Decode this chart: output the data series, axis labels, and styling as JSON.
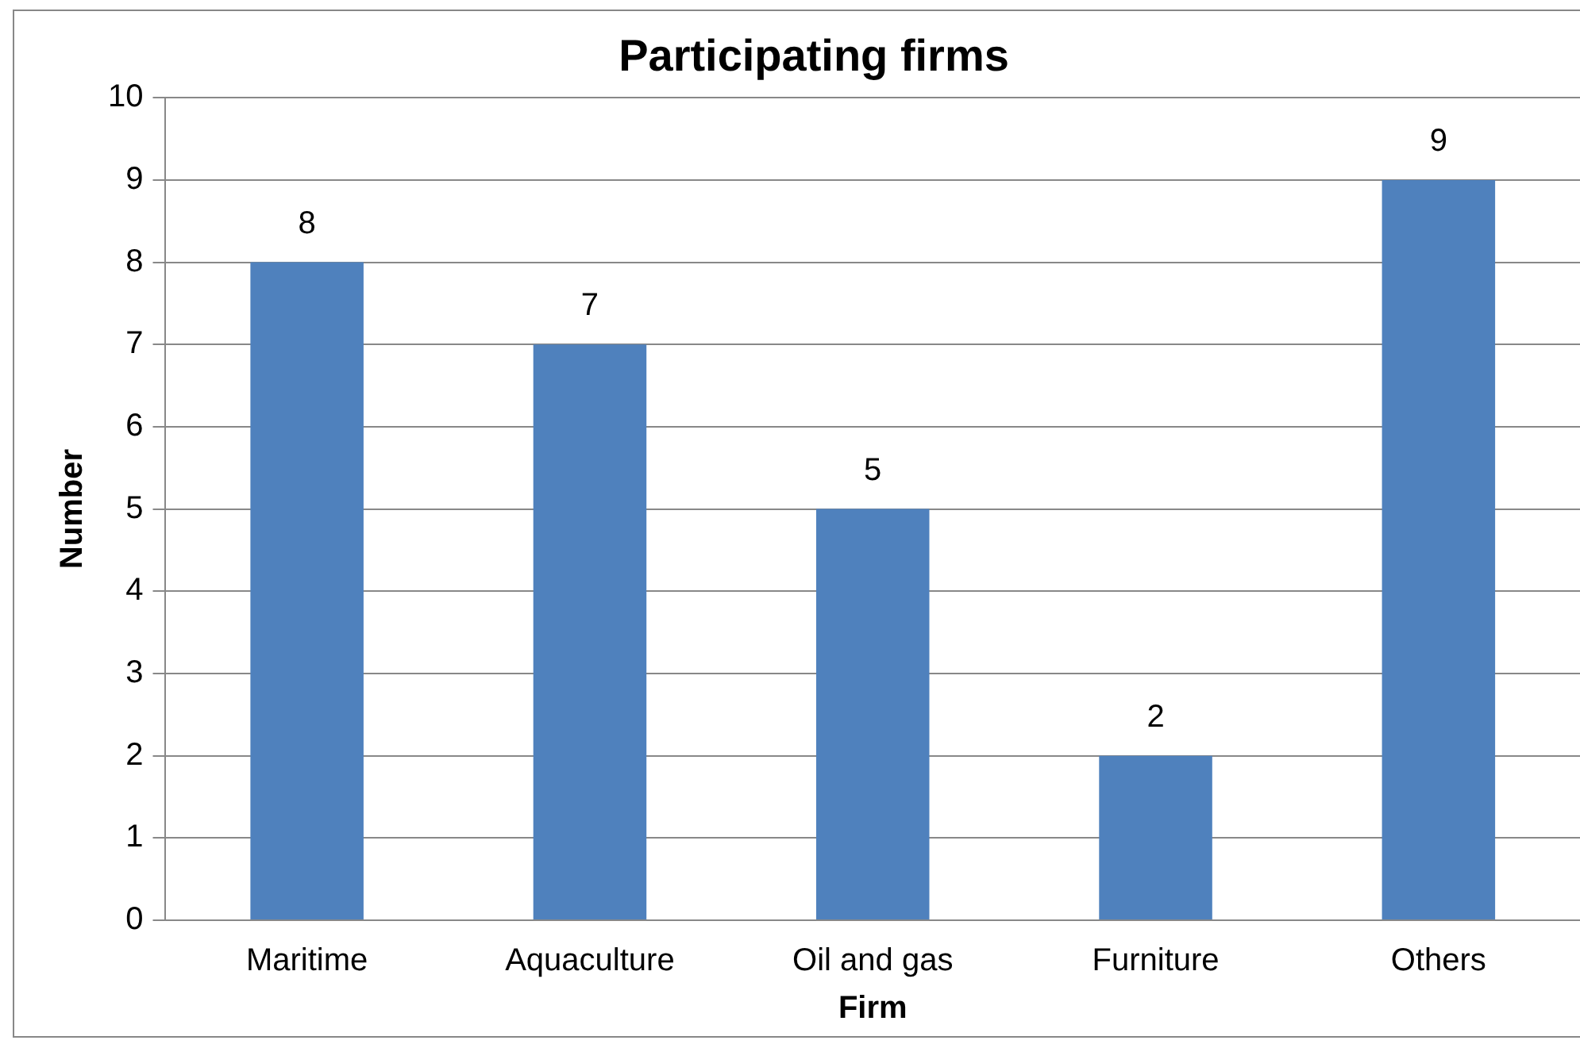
{
  "chart_data": {
    "type": "bar",
    "title": "Participating firms",
    "xlabel": "Firm",
    "ylabel": "Number",
    "categories": [
      "Maritime",
      "Aquaculture",
      "Oil and gas",
      "Furniture",
      "Others"
    ],
    "values": [
      8,
      7,
      5,
      2,
      9
    ],
    "color": "#4f81bd",
    "ylim": [
      0,
      10
    ],
    "yticks": [
      0,
      1,
      2,
      3,
      4,
      5,
      6,
      7,
      8,
      9,
      10
    ],
    "grid": "y",
    "data_labels": true
  }
}
